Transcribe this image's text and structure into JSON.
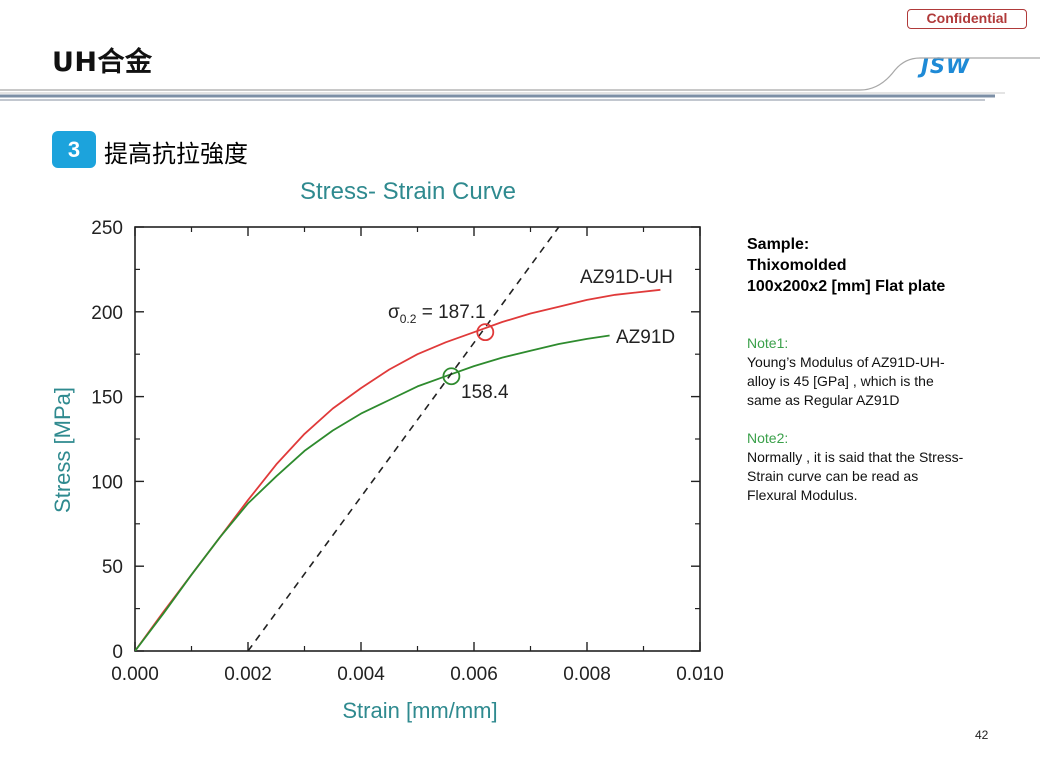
{
  "header": {
    "confidential_label": "Confidential",
    "title": "UH合金",
    "logo_text": "JSW"
  },
  "section": {
    "number": "3",
    "title": "提高抗拉強度"
  },
  "chart_data": {
    "type": "line",
    "title": "Stress- Strain Curve",
    "xlabel": "Strain  [mm/mm]",
    "ylabel": "Stress  [MPa]",
    "xlim": [
      0,
      0.01
    ],
    "ylim": [
      0,
      250
    ],
    "x_ticks": [
      0,
      0.002,
      0.004,
      0.006,
      0.008,
      0.01
    ],
    "x_tick_labels": [
      "0.000",
      "0.002",
      "0.004",
      "0.006",
      "0.008",
      "0.010"
    ],
    "y_ticks": [
      0,
      50,
      100,
      150,
      200,
      250
    ],
    "y_tick_labels": [
      "0",
      "50",
      "100",
      "150",
      "200",
      "250"
    ],
    "colors": {
      "title": "#2f8a8f",
      "axis_label": "#2f8a8f",
      "uh": "#e03a3a",
      "regular": "#2e8b2e",
      "offset": "#222222"
    },
    "series": [
      {
        "name": "AZ91D-UH",
        "color": "#e03a3a",
        "x": [
          0,
          0.0005,
          0.001,
          0.0015,
          0.002,
          0.0025,
          0.003,
          0.0035,
          0.004,
          0.0045,
          0.005,
          0.0055,
          0.006,
          0.0065,
          0.007,
          0.0075,
          0.008,
          0.0085,
          0.0093
        ],
        "y": [
          0,
          23,
          45,
          67,
          89,
          110,
          128,
          143,
          155,
          166,
          175,
          182,
          188,
          194,
          199,
          203,
          207,
          210,
          213
        ]
      },
      {
        "name": "AZ91D",
        "color": "#2e8b2e",
        "x": [
          0,
          0.0005,
          0.001,
          0.0015,
          0.002,
          0.0025,
          0.003,
          0.0035,
          0.004,
          0.0045,
          0.005,
          0.0055,
          0.006,
          0.0065,
          0.007,
          0.0075,
          0.008,
          0.0084
        ],
        "y": [
          0,
          22,
          45,
          67,
          87,
          103,
          118,
          130,
          140,
          148,
          156,
          162,
          168,
          173,
          177,
          181,
          184,
          186
        ]
      },
      {
        "name": "0.2% offset",
        "color": "#222222",
        "x": [
          0.002,
          0.0075
        ],
        "y": [
          0,
          250
        ]
      }
    ],
    "annotations": [
      {
        "type": "circle",
        "x": 0.0062,
        "y": 188,
        "color": "#e03a3a"
      },
      {
        "type": "circle",
        "x": 0.0056,
        "y": 162,
        "color": "#2e8b2e"
      }
    ],
    "labels": {
      "uh_series": "AZ91D-UH",
      "regular_series": "AZ91D",
      "sigma_symbol": "σ",
      "sigma_sub": "0.2",
      "sigma_value": " = 187.1",
      "regular_value": "158.4"
    },
    "grid": false,
    "legend": "inline"
  },
  "side_panel": {
    "sample_lines": [
      "Sample:",
      "Thixomolded",
      "100x200x2 [mm] Flat plate"
    ],
    "note1_title": "Note1:",
    "note1_lines": [
      "Young’s Modulus  of AZ91D-UH-",
      "alloy is 45 [GPa] , which is the",
      "same as Regular AZ91D"
    ],
    "note2_title": "Note2:",
    "note2_lines": [
      "Normally , it is said that  the Stress-",
      "Strain curve  can be read as",
      "Flexural  Modulus."
    ]
  },
  "page_number": "42"
}
